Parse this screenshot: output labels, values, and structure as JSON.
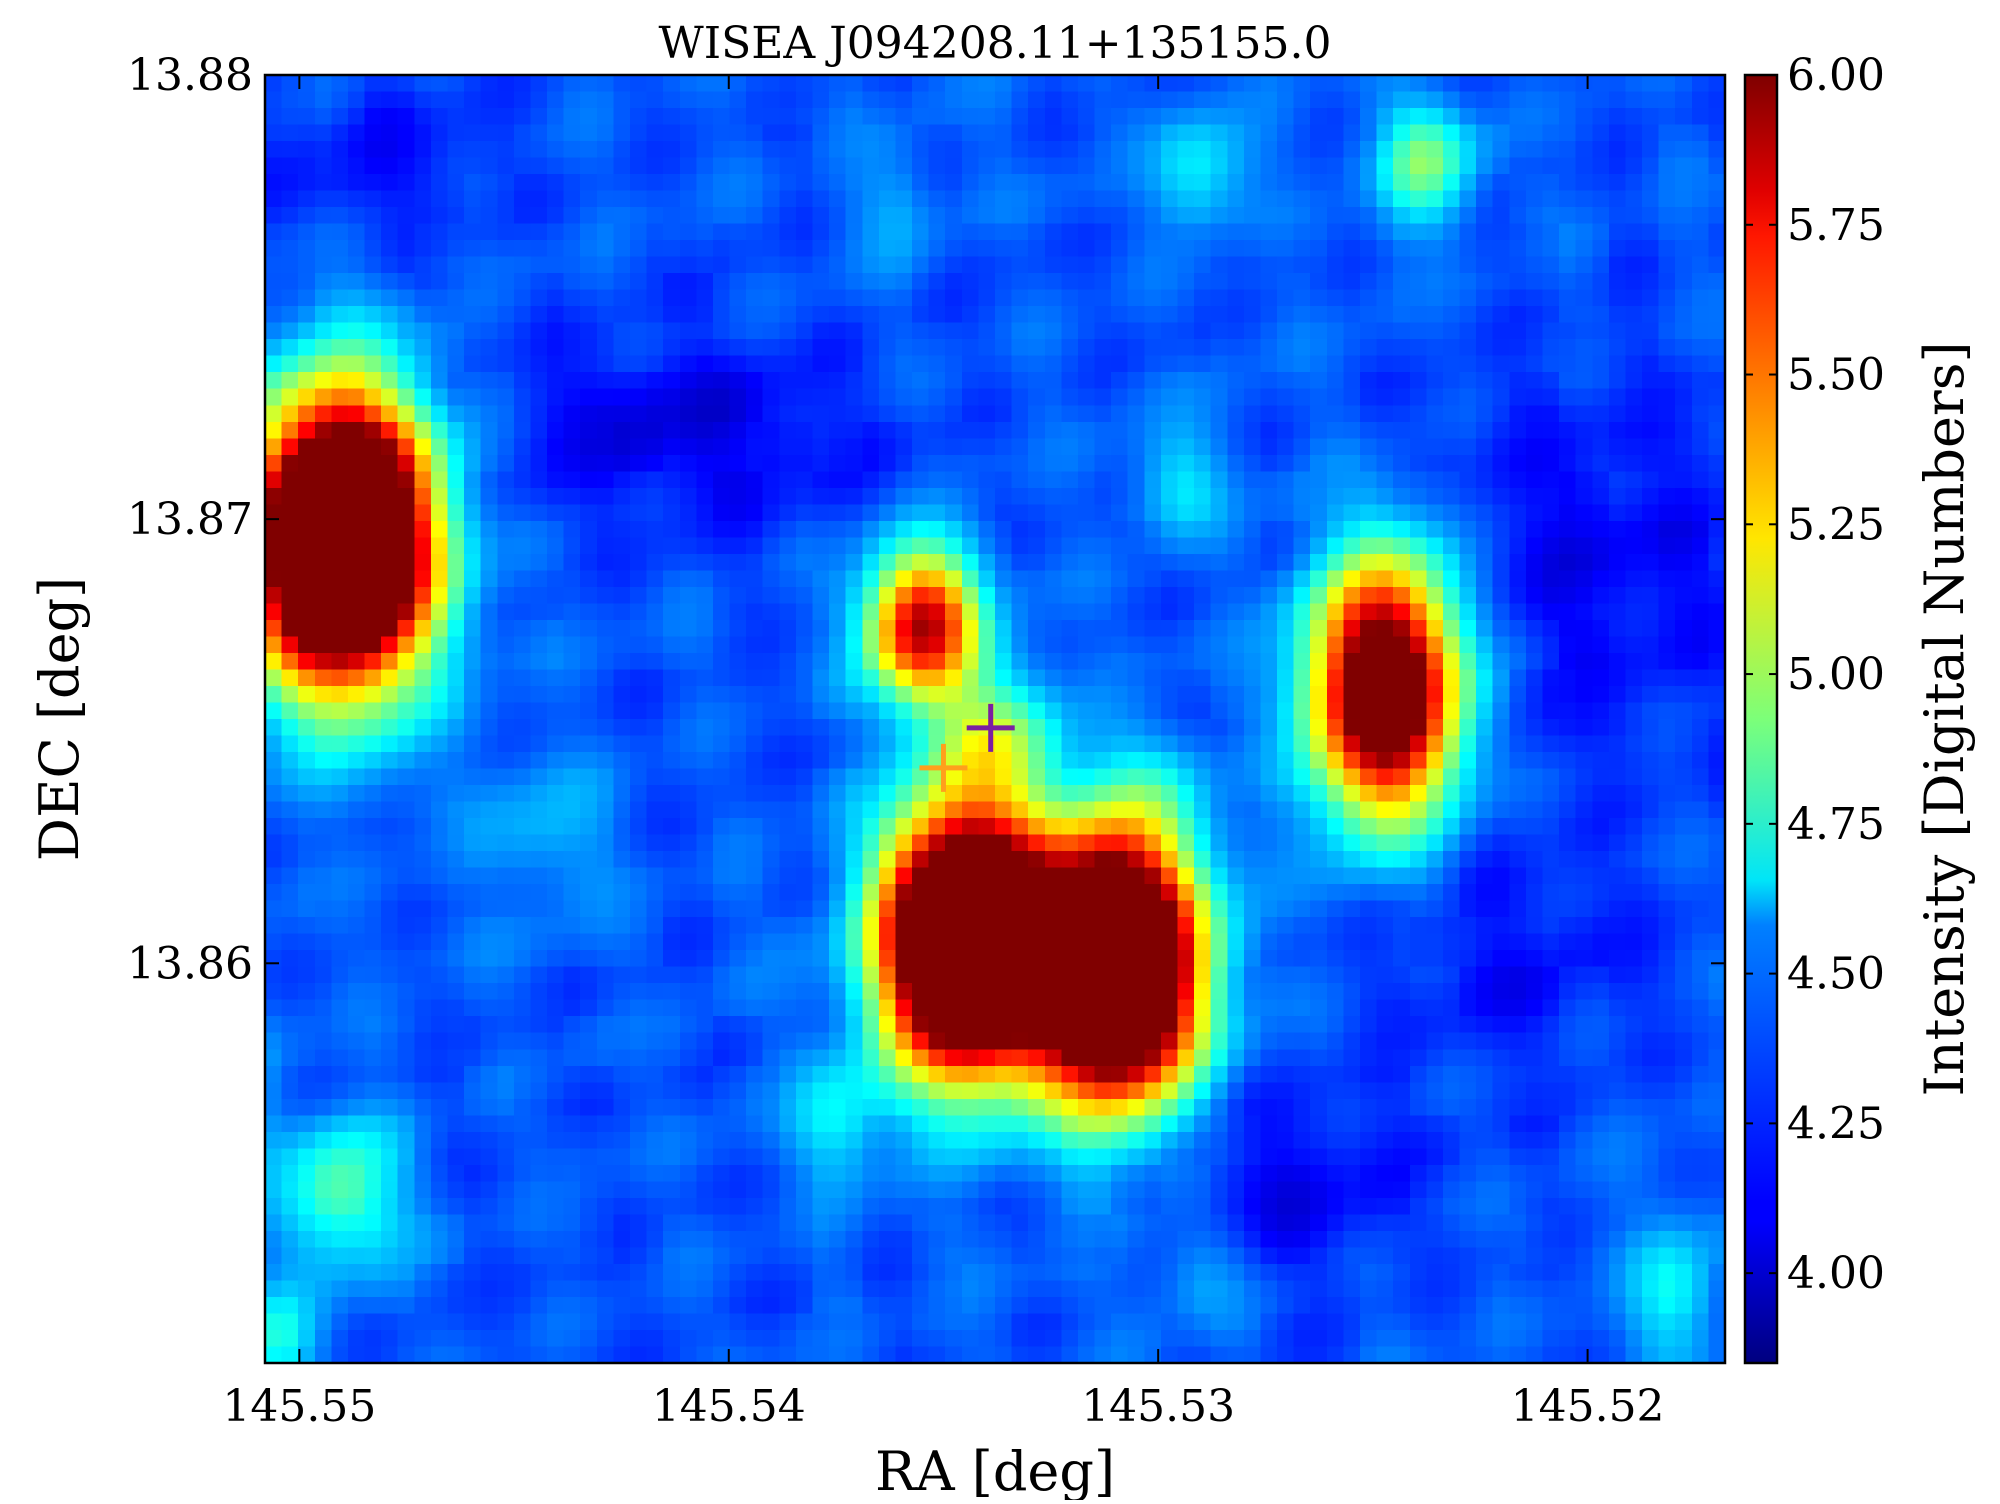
{
  "chart_data": {
    "type": "heatmap",
    "title": "WISEA J094208.11+135155.0",
    "xlabel": "RA [deg]",
    "ylabel": "DEC [deg]",
    "colorbar_label": "Intensity [Digital Numbers]",
    "colormap": "jet",
    "x_axis_inverted": true,
    "xlim": [
      145.5508,
      145.5168
    ],
    "ylim": [
      13.851,
      13.88
    ],
    "x_ticks": [
      {
        "value": 145.55,
        "label": "145.55"
      },
      {
        "value": 145.54,
        "label": "145.54"
      },
      {
        "value": 145.53,
        "label": "145.53"
      },
      {
        "value": 145.52,
        "label": "145.52"
      }
    ],
    "y_ticks": [
      {
        "value": 13.88,
        "label": "13.88"
      },
      {
        "value": 13.87,
        "label": "13.87"
      },
      {
        "value": 13.86,
        "label": "13.86"
      }
    ],
    "color_range": [
      3.85,
      6.0
    ],
    "colorbar_ticks": [
      {
        "value": 6.0,
        "label": "6.00"
      },
      {
        "value": 5.75,
        "label": "5.75"
      },
      {
        "value": 5.5,
        "label": "5.50"
      },
      {
        "value": 5.25,
        "label": "5.25"
      },
      {
        "value": 5.0,
        "label": "5.00"
      },
      {
        "value": 4.75,
        "label": "4.75"
      },
      {
        "value": 4.5,
        "label": "4.50"
      },
      {
        "value": 4.25,
        "label": "4.25"
      },
      {
        "value": 4.0,
        "label": "4.00"
      }
    ],
    "background_level": 4.3,
    "sources": [
      {
        "ra": 145.549,
        "dec": 13.8695,
        "amplitude": 3.5,
        "sigma_ra": 0.0014,
        "sigma_dec": 0.0022
      },
      {
        "ra": 145.5355,
        "dec": 13.8676,
        "amplitude": 1.6,
        "sigma_ra": 0.0009,
        "sigma_dec": 0.0012
      },
      {
        "ra": 145.5247,
        "dec": 13.8662,
        "amplitude": 2.3,
        "sigma_ra": 0.0012,
        "sigma_dec": 0.002
      },
      {
        "ra": 145.5345,
        "dec": 13.8605,
        "amplitude": 3.4,
        "sigma_ra": 0.0013,
        "sigma_dec": 0.002
      },
      {
        "ra": 145.531,
        "dec": 13.8599,
        "amplitude": 3.4,
        "sigma_ra": 0.0013,
        "sigma_dec": 0.002
      },
      {
        "ra": 145.5338,
        "dec": 13.8651,
        "amplitude": 0.55,
        "sigma_ra": 0.001,
        "sigma_dec": 0.0011
      },
      {
        "ra": 145.5238,
        "dec": 13.878,
        "amplitude": 0.6,
        "sigma_ra": 0.0008,
        "sigma_dec": 0.001
      },
      {
        "ra": 145.549,
        "dec": 13.8548,
        "amplitude": 0.55,
        "sigma_ra": 0.001,
        "sigma_dec": 0.0012
      },
      {
        "ra": 145.529,
        "dec": 13.8778,
        "amplitude": 0.35,
        "sigma_ra": 0.0008,
        "sigma_dec": 0.0009
      },
      {
        "ra": 145.5295,
        "dec": 13.8708,
        "amplitude": 0.3,
        "sigma_ra": 0.0007,
        "sigma_dec": 0.0009
      },
      {
        "ra": 145.5375,
        "dec": 13.8565,
        "amplitude": 0.35,
        "sigma_ra": 0.0008,
        "sigma_dec": 0.001
      },
      {
        "ra": 145.5443,
        "dec": 13.863,
        "amplitude": 0.2,
        "sigma_ra": 0.0012,
        "sigma_dec": 0.0012
      },
      {
        "ra": 145.518,
        "dec": 13.8525,
        "amplitude": 0.35,
        "sigma_ra": 0.0008,
        "sigma_dec": 0.0012
      },
      {
        "ra": 145.5505,
        "dec": 13.8515,
        "amplitude": 0.4,
        "sigma_ra": 0.0006,
        "sigma_dec": 0.0008
      },
      {
        "ra": 145.5515,
        "dec": 13.857,
        "amplitude": 0.25,
        "sigma_ra": 0.0006,
        "sigma_dec": 0.0012
      },
      {
        "ra": 145.53,
        "dec": 13.864,
        "amplitude": 0.2,
        "sigma_ra": 0.0008,
        "sigma_dec": 0.0008
      },
      {
        "ra": 145.529,
        "dec": 13.853,
        "amplitude": 0.2,
        "sigma_ra": 0.0008,
        "sigma_dec": 0.0008
      },
      {
        "ra": 145.536,
        "dec": 13.877,
        "amplitude": 0.15,
        "sigma_ra": 0.0008,
        "sigma_dec": 0.001
      }
    ],
    "low_regions": [
      {
        "ra": 145.541,
        "dec": 13.872,
        "amplitude": -0.25,
        "sigma_ra": 0.003,
        "sigma_dec": 0.0015
      },
      {
        "ra": 145.52,
        "dec": 13.869,
        "amplitude": -0.2,
        "sigma_ra": 0.003,
        "sigma_dec": 0.003
      },
      {
        "ra": 145.527,
        "dec": 13.855,
        "amplitude": -0.2,
        "sigma_ra": 0.002,
        "sigma_dec": 0.0015
      },
      {
        "ra": 145.548,
        "dec": 13.878,
        "amplitude": -0.15,
        "sigma_ra": 0.002,
        "sigma_dec": 0.0012
      },
      {
        "ra": 145.522,
        "dec": 13.86,
        "amplitude": -0.15,
        "sigma_ra": 0.0025,
        "sigma_dec": 0.002
      }
    ],
    "markers": [
      {
        "ra": 145.5339,
        "dec": 13.8653,
        "color": "#7b1fa2",
        "symbol": "+"
      },
      {
        "ra": 145.535,
        "dec": 13.8644,
        "color": "#ff9f1c",
        "symbol": "+"
      }
    ]
  }
}
